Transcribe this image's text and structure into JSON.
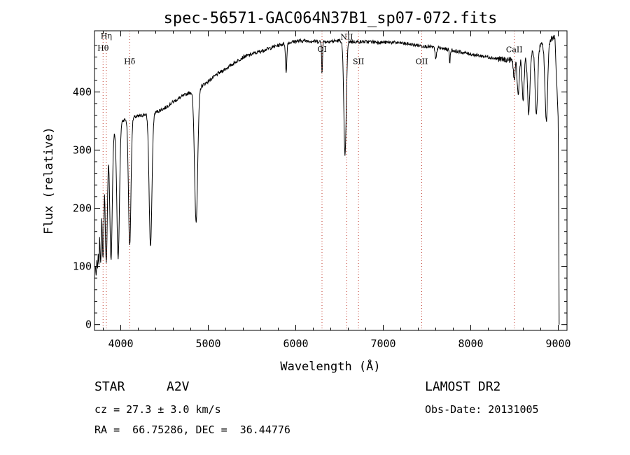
{
  "chart_data": {
    "type": "line",
    "title": "spec-56571-GAC064N37B1_sp07-072.fits",
    "xlabel": "Wavelength (Å)",
    "ylabel": "Flux (relative)",
    "xlim": [
      3700,
      9100
    ],
    "ylim": [
      -10,
      505
    ],
    "xticks": [
      4000,
      5000,
      6000,
      7000,
      8000,
      9000
    ],
    "yticks": [
      0,
      100,
      200,
      300,
      400
    ],
    "grid": false,
    "spectrum_continuum": [
      [
        3710,
        110
      ],
      [
        3750,
        170
      ],
      [
        3800,
        240
      ],
      [
        3850,
        290
      ],
      [
        3900,
        320
      ],
      [
        3950,
        340
      ],
      [
        4000,
        350
      ],
      [
        4100,
        355
      ],
      [
        4200,
        358
      ],
      [
        4300,
        362
      ],
      [
        4400,
        365
      ],
      [
        4500,
        372
      ],
      [
        4600,
        383
      ],
      [
        4700,
        392
      ],
      [
        4800,
        400
      ],
      [
        4900,
        408
      ],
      [
        5000,
        418
      ],
      [
        5100,
        430
      ],
      [
        5200,
        440
      ],
      [
        5300,
        450
      ],
      [
        5400,
        460
      ],
      [
        5500,
        465
      ],
      [
        5600,
        470
      ],
      [
        5700,
        475
      ],
      [
        5800,
        480
      ],
      [
        5900,
        484
      ],
      [
        6000,
        487
      ],
      [
        6100,
        488
      ],
      [
        6200,
        487
      ],
      [
        6300,
        486
      ],
      [
        6400,
        487
      ],
      [
        6500,
        488
      ],
      [
        6600,
        487
      ],
      [
        6700,
        486
      ],
      [
        6800,
        486
      ],
      [
        6900,
        486
      ],
      [
        7000,
        485
      ],
      [
        7100,
        485
      ],
      [
        7200,
        484
      ],
      [
        7300,
        482
      ],
      [
        7400,
        480
      ],
      [
        7500,
        478
      ],
      [
        7600,
        476
      ],
      [
        7700,
        474
      ],
      [
        7800,
        471
      ],
      [
        7900,
        468
      ],
      [
        8000,
        465
      ],
      [
        8100,
        462
      ],
      [
        8200,
        460
      ],
      [
        8300,
        457
      ],
      [
        8400,
        455
      ],
      [
        8500,
        455
      ],
      [
        8600,
        460
      ],
      [
        8700,
        470
      ],
      [
        8800,
        480
      ],
      [
        8900,
        490
      ],
      [
        8960,
        495
      ],
      [
        9000,
        350
      ],
      [
        9010,
        0
      ]
    ],
    "absorption_features": [
      {
        "center": 3720,
        "min": 85,
        "width": 6
      },
      {
        "center": 3735,
        "min": 95,
        "width": 6
      },
      {
        "center": 3750,
        "min": 105,
        "width": 7
      },
      {
        "center": 3771,
        "min": 110,
        "width": 8
      },
      {
        "center": 3798,
        "min": 115,
        "width": 9
      },
      {
        "center": 3835,
        "min": 105,
        "width": 11
      },
      {
        "center": 3889,
        "min": 110,
        "width": 13
      },
      {
        "center": 3970,
        "min": 115,
        "width": 15
      },
      {
        "center": 4102,
        "min": 135,
        "width": 14
      },
      {
        "center": 4340,
        "min": 135,
        "width": 16
      },
      {
        "center": 4861,
        "min": 178,
        "width": 18
      },
      {
        "center": 5890,
        "min": 432,
        "width": 7
      },
      {
        "center": 6300,
        "min": 432,
        "width": 5
      },
      {
        "center": 6563,
        "min": 292,
        "width": 14
      },
      {
        "center": 7600,
        "min": 455,
        "width": 8
      },
      {
        "center": 7760,
        "min": 450,
        "width": 5
      },
      {
        "center": 8498,
        "min": 420,
        "width": 10
      },
      {
        "center": 8542,
        "min": 395,
        "width": 12
      },
      {
        "center": 8598,
        "min": 385,
        "width": 12
      },
      {
        "center": 8662,
        "min": 365,
        "width": 14
      },
      {
        "center": 8750,
        "min": 360,
        "width": 14
      },
      {
        "center": 8863,
        "min": 350,
        "width": 15
      }
    ],
    "spectral_line_markers": [
      {
        "label": "Hη",
        "x": 3835,
        "label_value": 492,
        "color": "#c0392b"
      },
      {
        "label": "Hθ",
        "x": 3798,
        "label_value": 471,
        "color": "#c0392b"
      },
      {
        "label": "Hδ",
        "x": 4102,
        "label_value": 448,
        "color": "#c0392b"
      },
      {
        "label": "OI",
        "x": 6300,
        "label_value": 469,
        "color": "#c0392b"
      },
      {
        "label": "NII",
        "x": 6583,
        "label_value": 490,
        "color": "#c0392b"
      },
      {
        "label": "SII",
        "x": 6717,
        "label_value": 448,
        "color": "#c0392b"
      },
      {
        "label": "OII",
        "x": 7440,
        "label_value": 448,
        "color": "#c0392b"
      },
      {
        "label": "CaII",
        "x": 8498,
        "label_value": 468,
        "color": "#c0392b"
      }
    ],
    "line_color": "#000000"
  },
  "info": {
    "object_type": "STAR",
    "subclass": "A2V",
    "survey": "LAMOST DR2",
    "cz": "cz = 27.3 ± 3.0 km/s",
    "obs_date": "Obs-Date: 20131005",
    "coords": "RA =  66.75286, DEC =  36.44776"
  }
}
